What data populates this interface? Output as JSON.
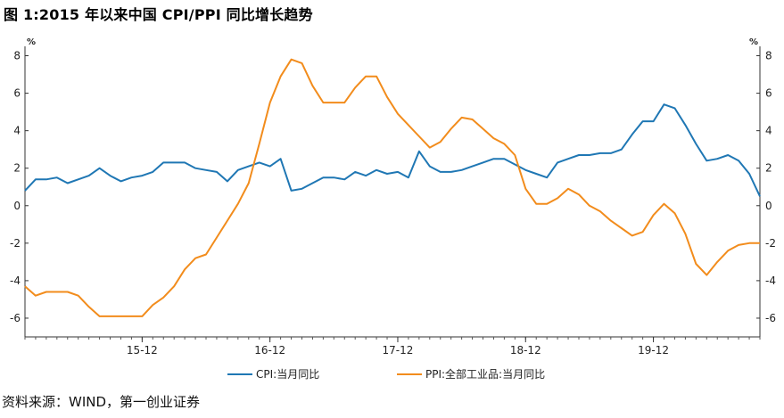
{
  "title": "图 1:2015 年以来中国 CPI/PPI 同比增长趋势",
  "source": "资料来源：WIND，第一创业证券",
  "chart_data": {
    "type": "line",
    "x_start": "2015-01",
    "x_tick_labels": [
      "15-12",
      "16-12",
      "17-12",
      "18-12",
      "19-12"
    ],
    "left_unit": "%",
    "right_unit": "%",
    "ylim": [
      -7,
      8.5
    ],
    "y_ticks": [
      8,
      6,
      4,
      2,
      0,
      -2,
      -4,
      -6
    ],
    "y_tick_labels": [
      "8",
      "6",
      "4",
      "2",
      "0",
      "-2",
      "-4",
      "-6"
    ],
    "legend_position": "bottom",
    "series": [
      {
        "name": "CPI:当月同比",
        "color": "#1f77b4",
        "values": [
          0.8,
          1.4,
          1.4,
          1.5,
          1.2,
          1.4,
          1.6,
          2.0,
          1.6,
          1.3,
          1.5,
          1.6,
          1.8,
          2.3,
          2.3,
          2.3,
          2.0,
          1.9,
          1.8,
          1.3,
          1.9,
          2.1,
          2.3,
          2.1,
          2.5,
          0.8,
          0.9,
          1.2,
          1.5,
          1.5,
          1.4,
          1.8,
          1.6,
          1.9,
          1.7,
          1.8,
          1.5,
          2.9,
          2.1,
          1.8,
          1.8,
          1.9,
          2.1,
          2.3,
          2.5,
          2.5,
          2.2,
          1.9,
          1.7,
          1.5,
          2.3,
          2.5,
          2.7,
          2.7,
          2.8,
          2.8,
          3.0,
          3.8,
          4.5,
          4.5,
          5.4,
          5.2,
          4.3,
          3.3,
          2.4,
          2.5,
          2.7,
          2.4,
          1.7,
          0.5
        ]
      },
      {
        "name": "PPI:全部工业品:当月同比",
        "color": "#f28c1c",
        "values": [
          -4.3,
          -4.8,
          -4.6,
          -4.6,
          -4.6,
          -4.8,
          -5.4,
          -5.9,
          -5.9,
          -5.9,
          -5.9,
          -5.9,
          -5.3,
          -4.9,
          -4.3,
          -3.4,
          -2.8,
          -2.6,
          -1.7,
          -0.8,
          0.1,
          1.2,
          3.3,
          5.5,
          6.9,
          7.8,
          7.6,
          6.4,
          5.5,
          5.5,
          5.5,
          6.3,
          6.9,
          6.9,
          5.8,
          4.9,
          4.3,
          3.7,
          3.1,
          3.4,
          4.1,
          4.7,
          4.6,
          4.1,
          3.6,
          3.3,
          2.7,
          0.9,
          0.1,
          0.1,
          0.4,
          0.9,
          0.6,
          0.0,
          -0.3,
          -0.8,
          -1.2,
          -1.6,
          -1.4,
          -0.5,
          0.1,
          -0.4,
          -1.5,
          -3.1,
          -3.7,
          -3.0,
          -2.4,
          -2.1,
          -2.0,
          -2.0
        ]
      }
    ]
  }
}
